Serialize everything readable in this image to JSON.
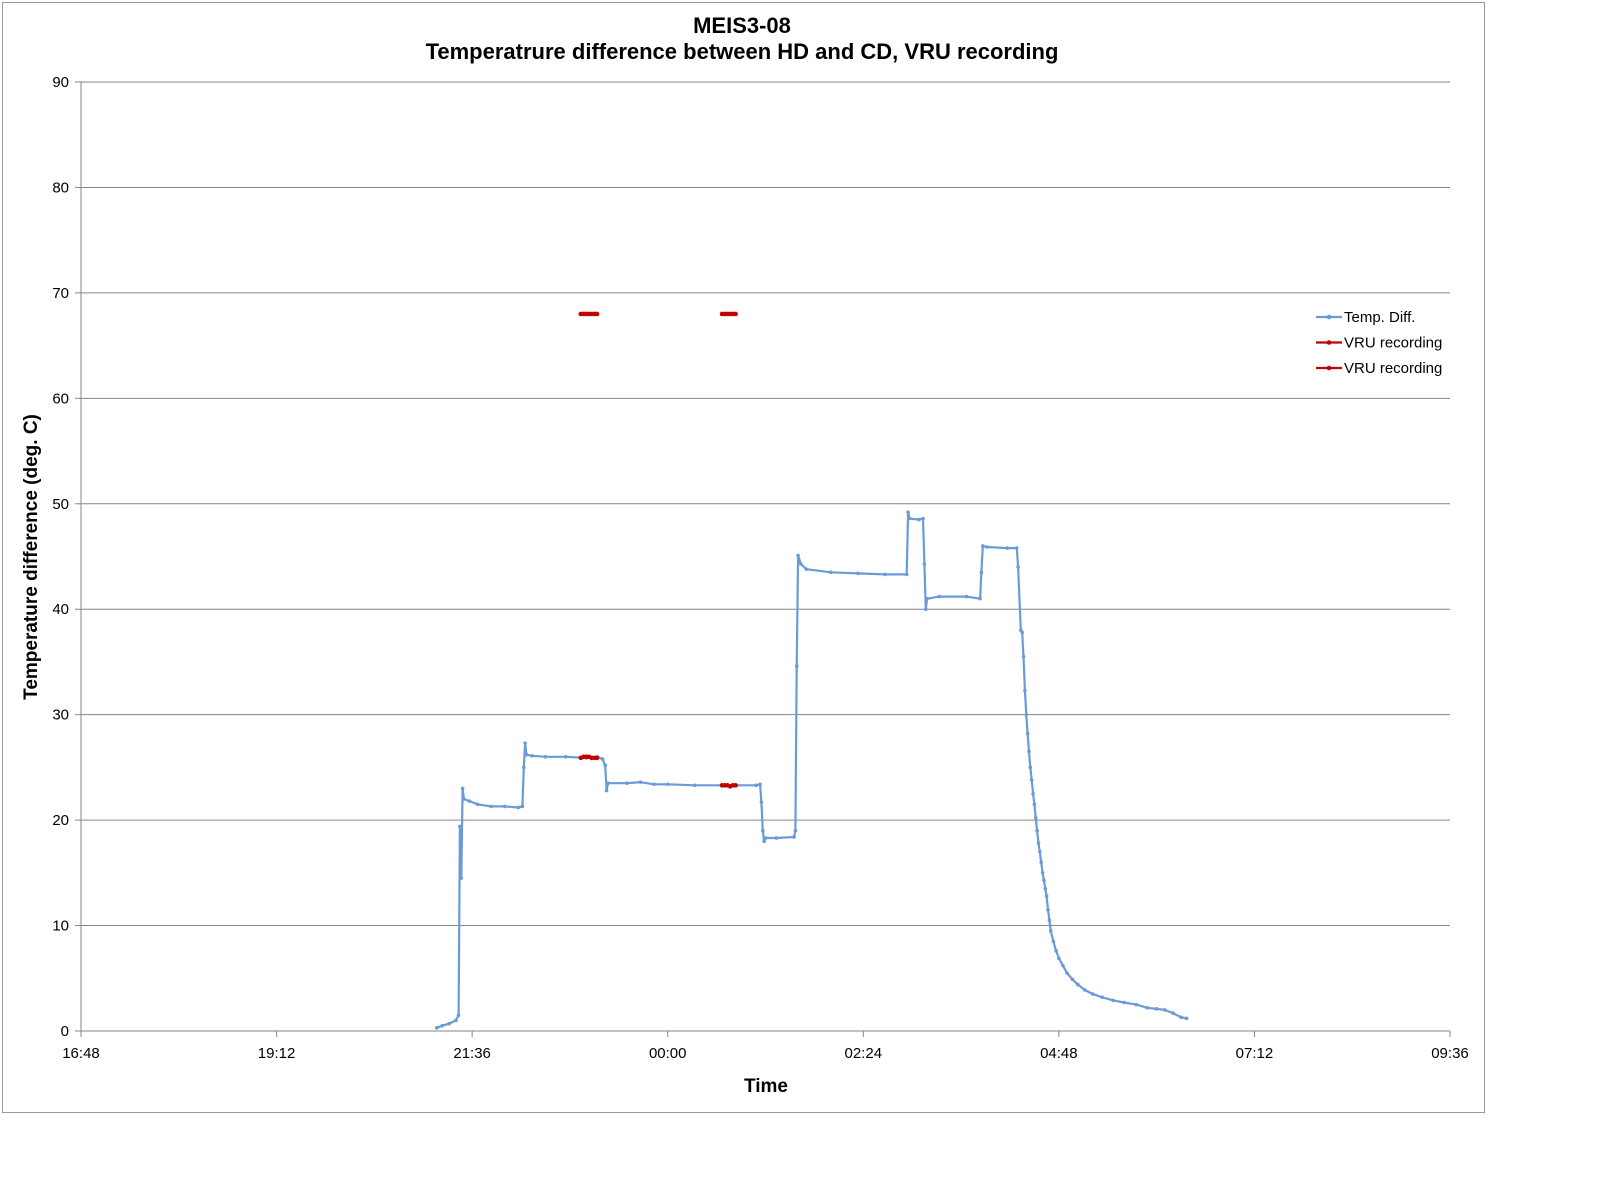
{
  "chart_data": {
    "type": "line",
    "title": "MEIS3-08",
    "subtitle": "Temperatrure difference between HD and CD, VRU recording",
    "xlabel": "Time",
    "ylabel": "Temperature difference (deg. C)",
    "ylim": [
      0,
      90
    ],
    "yticks": [
      0,
      10,
      20,
      30,
      40,
      50,
      60,
      70,
      80,
      90
    ],
    "xlim": [
      "16:48",
      "09:36"
    ],
    "xticks": [
      "16:48",
      "19:12",
      "21:36",
      "00:00",
      "02:24",
      "04:48",
      "07:12",
      "09:36"
    ],
    "grid": "horizontal",
    "legend_position": "right",
    "colors": {
      "temp": "#6a9bd8",
      "vru": "#c00000"
    },
    "series": [
      {
        "name": "Temp. Diff.",
        "color": "#6a9bd8",
        "points": [
          [
            "21:10",
            0.3
          ],
          [
            "21:14",
            0.5
          ],
          [
            "21:19",
            0.7
          ],
          [
            "21:24",
            1.0
          ],
          [
            "21:26",
            1.5
          ],
          [
            "21:27",
            19.4
          ],
          [
            "21:28",
            14.5
          ],
          [
            "21:29",
            23.0
          ],
          [
            "21:30",
            22.0
          ],
          [
            "21:34",
            21.8
          ],
          [
            "21:40",
            21.5
          ],
          [
            "21:50",
            21.3
          ],
          [
            "22:00",
            21.3
          ],
          [
            "22:10",
            21.2
          ],
          [
            "22:13",
            21.3
          ],
          [
            "22:14",
            25.0
          ],
          [
            "22:15",
            27.3
          ],
          [
            "22:16",
            26.2
          ],
          [
            "22:20",
            26.1
          ],
          [
            "22:30",
            26.0
          ],
          [
            "22:45",
            26.0
          ],
          [
            "23:00",
            25.9
          ],
          [
            "23:08",
            26.0
          ],
          [
            "23:12",
            25.8
          ],
          [
            "23:14",
            25.2
          ],
          [
            "23:15",
            22.8
          ],
          [
            "23:16",
            23.5
          ],
          [
            "23:30",
            23.5
          ],
          [
            "23:40",
            23.6
          ],
          [
            "23:50",
            23.4
          ],
          [
            "24:00",
            23.4
          ],
          [
            "24:20",
            23.3
          ],
          [
            "24:40",
            23.3
          ],
          [
            "25:05",
            23.3
          ],
          [
            "25:08",
            23.4
          ],
          [
            "25:09",
            21.7
          ],
          [
            "25:10",
            19.0
          ],
          [
            "25:11",
            18.0
          ],
          [
            "25:12",
            18.3
          ],
          [
            "25:20",
            18.3
          ],
          [
            "25:33",
            18.4
          ],
          [
            "25:34",
            19.0
          ],
          [
            "25:35",
            34.6
          ],
          [
            "25:36",
            45.1
          ],
          [
            "25:38",
            44.3
          ],
          [
            "25:42",
            43.8
          ],
          [
            "26:00",
            43.5
          ],
          [
            "26:20",
            43.4
          ],
          [
            "26:40",
            43.3
          ],
          [
            "26:56",
            43.3
          ],
          [
            "26:57",
            49.2
          ],
          [
            "26:58",
            48.6
          ],
          [
            "27:05",
            48.5
          ],
          [
            "27:08",
            48.6
          ],
          [
            "27:09",
            44.3
          ],
          [
            "27:10",
            40.0
          ],
          [
            "27:11",
            41.0
          ],
          [
            "27:20",
            41.2
          ],
          [
            "27:40",
            41.2
          ],
          [
            "27:50",
            41.0
          ],
          [
            "27:51",
            43.5
          ],
          [
            "27:52",
            46.0
          ],
          [
            "27:55",
            45.9
          ],
          [
            "28:10",
            45.8
          ],
          [
            "28:17",
            45.8
          ],
          [
            "28:18",
            44.0
          ],
          [
            "28:20",
            38.0
          ],
          [
            "28:21",
            37.8
          ],
          [
            "28:22",
            35.5
          ],
          [
            "28:23",
            32.3
          ],
          [
            "28:24",
            30.0
          ],
          [
            "28:25",
            28.2
          ],
          [
            "28:26",
            26.5
          ],
          [
            "28:27",
            25.0
          ],
          [
            "28:28",
            23.8
          ],
          [
            "28:29",
            22.5
          ],
          [
            "28:30",
            21.5
          ],
          [
            "28:31",
            20.2
          ],
          [
            "28:32",
            19.0
          ],
          [
            "28:33",
            17.8
          ],
          [
            "28:34",
            17.0
          ],
          [
            "28:35",
            16.0
          ],
          [
            "28:36",
            15.0
          ],
          [
            "28:37",
            14.3
          ],
          [
            "28:38",
            13.5
          ],
          [
            "28:39",
            12.8
          ],
          [
            "28:40",
            11.5
          ],
          [
            "28:41",
            10.5
          ],
          [
            "28:42",
            9.5
          ],
          [
            "28:44",
            8.5
          ],
          [
            "28:46",
            7.6
          ],
          [
            "28:48",
            6.9
          ],
          [
            "28:51",
            6.2
          ],
          [
            "28:54",
            5.5
          ],
          [
            "28:58",
            4.9
          ],
          [
            "29:02",
            4.4
          ],
          [
            "29:07",
            3.9
          ],
          [
            "29:13",
            3.5
          ],
          [
            "29:20",
            3.2
          ],
          [
            "29:28",
            2.9
          ],
          [
            "29:36",
            2.7
          ],
          [
            "29:45",
            2.5
          ],
          [
            "29:53",
            2.2
          ],
          [
            "30:00",
            2.1
          ],
          [
            "30:06",
            2.0
          ],
          [
            "30:12",
            1.7
          ],
          [
            "30:18",
            1.3
          ],
          [
            "30:22",
            1.2
          ]
        ]
      },
      {
        "name": "VRU recording",
        "color": "#c00000",
        "points": [
          [
            "22:56",
            68.0
          ],
          [
            "22:58",
            68.0
          ],
          [
            "23:00",
            68.0
          ],
          [
            "23:02",
            68.0
          ],
          [
            "23:04",
            68.0
          ],
          [
            "23:06",
            68.0
          ],
          [
            "23:08",
            68.0
          ],
          [
            "24:40",
            68.0
          ],
          [
            "24:42",
            68.0
          ],
          [
            "24:44",
            68.0
          ],
          [
            "24:46",
            68.0
          ],
          [
            "24:48",
            68.0
          ],
          [
            "24:50",
            68.0
          ]
        ]
      },
      {
        "name": "VRU recording",
        "color": "#c00000",
        "points": [
          [
            "22:56",
            25.9
          ],
          [
            "22:58",
            26.0
          ],
          [
            "23:00",
            26.0
          ],
          [
            "23:02",
            26.0
          ],
          [
            "23:04",
            25.9
          ],
          [
            "23:06",
            25.9
          ],
          [
            "23:08",
            25.9
          ],
          [
            "24:40",
            23.3
          ],
          [
            "24:42",
            23.3
          ],
          [
            "24:44",
            23.3
          ],
          [
            "24:46",
            23.2
          ],
          [
            "24:48",
            23.3
          ],
          [
            "24:50",
            23.3
          ]
        ]
      }
    ]
  }
}
